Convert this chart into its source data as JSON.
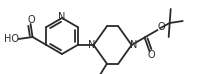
{
  "bg_color": "#ffffff",
  "line_color": "#2a2a2a",
  "lw": 1.3,
  "figsize": [
    2.12,
    0.74
  ],
  "dpi": 100,
  "xlim": [
    0,
    212
  ],
  "ylim": [
    0,
    74
  ]
}
